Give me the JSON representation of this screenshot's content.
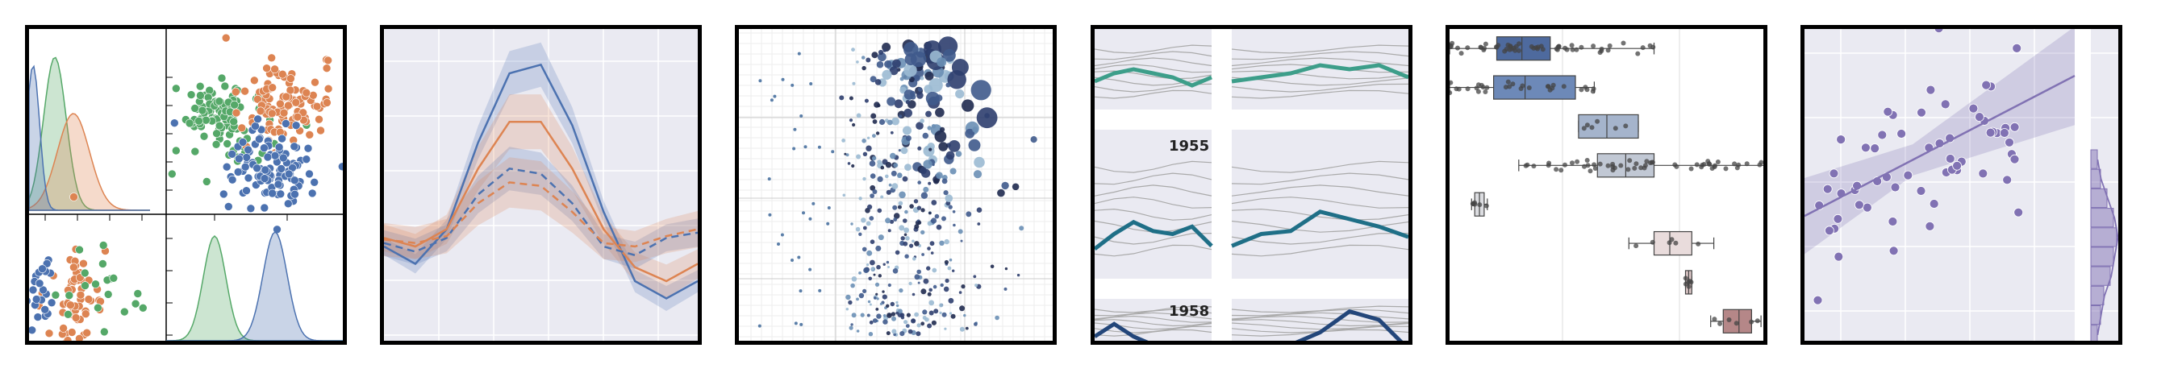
{
  "colors": {
    "blue": "#4c72b0",
    "orange": "#dd8452",
    "green": "#55a868",
    "grey_bg": "#eaeaf2",
    "teal": "#3d9e8a",
    "dark_teal": "#1f6f87",
    "navy": "#23467a",
    "purple": "#8172b3",
    "line_grey": "#aaaaaa"
  },
  "chart_data": [
    {
      "type": "scatter",
      "description_kind": "pairgrid",
      "series": [
        {
          "name": "",
          "color": "green",
          "center": [
            3.0,
            3.4
          ]
        },
        {
          "name": "",
          "color": "orange",
          "center": [
            5.9,
            3.8
          ]
        },
        {
          "name": "",
          "color": "blue",
          "center": [
            5.5,
            2.1
          ]
        }
      ]
    },
    {
      "type": "line",
      "x": [
        0,
        1,
        2,
        3,
        4,
        5,
        6,
        7,
        8,
        9,
        10
      ],
      "series": [
        {
          "name": "",
          "style": "solid",
          "color": "blue",
          "values": [
            0.0,
            -0.1,
            0.1,
            0.6,
            1.0,
            1.05,
            0.7,
            0.2,
            -0.2,
            -0.3,
            -0.2
          ]
        },
        {
          "name": "",
          "style": "solid",
          "color": "orange",
          "values": [
            0.05,
            0.0,
            0.1,
            0.45,
            0.72,
            0.72,
            0.45,
            0.1,
            -0.12,
            -0.2,
            -0.1
          ]
        },
        {
          "name": "",
          "style": "dashed",
          "color": "blue",
          "values": [
            0.02,
            -0.03,
            0.05,
            0.3,
            0.45,
            0.42,
            0.25,
            0.0,
            -0.05,
            0.05,
            0.08
          ]
        },
        {
          "name": "",
          "style": "dashed",
          "color": "orange",
          "values": [
            0.04,
            0.02,
            0.06,
            0.25,
            0.37,
            0.35,
            0.2,
            0.02,
            0.0,
            0.06,
            0.1
          ]
        }
      ]
    },
    {
      "type": "scatter",
      "description_kind": "bubble",
      "size_range": [
        2,
        18
      ]
    },
    {
      "type": "line",
      "description_kind": "small-multiples",
      "years": [
        "1955",
        "1958"
      ],
      "facet_lines": [
        {
          "values": [
            4.5,
            4.7,
            4.8,
            4.6,
            4.4,
            4.2
          ]
        },
        {
          "values": [
            4.4,
            4.6,
            4.7,
            4.5,
            4.3,
            4.1
          ]
        },
        {
          "values": [
            4.2,
            4.5,
            4.6,
            4.4,
            4.2,
            4.0
          ]
        }
      ]
    },
    {
      "type": "box",
      "boxes": [
        {
          "q1": 1.5,
          "median": 2.3,
          "q3": 3.2,
          "lo": 0.0,
          "hi": 6.5,
          "color": "#4e6a9e"
        },
        {
          "q1": 1.4,
          "median": 2.4,
          "q3": 4.0,
          "lo": 0.0,
          "hi": 4.6,
          "color": "#6d89b8"
        },
        {
          "q1": 4.1,
          "median": 5.0,
          "q3": 6.0,
          "lo": 4.1,
          "hi": 6.0,
          "color": "#a5b4cc"
        },
        {
          "q1": 4.7,
          "median": 5.6,
          "q3": 6.5,
          "lo": 2.2,
          "hi": 10.0,
          "color": "#c1c8d4"
        },
        {
          "q1": 0.8,
          "median": 0.95,
          "q3": 1.1,
          "lo": 0.7,
          "hi": 1.2,
          "color": "#dcdde1"
        },
        {
          "q1": 6.5,
          "median": 7.0,
          "q3": 7.7,
          "lo": 5.7,
          "hi": 8.4,
          "color": "#e9dcdc"
        },
        {
          "q1": 7.5,
          "median": 7.6,
          "q3": 7.7,
          "lo": 7.5,
          "hi": 7.7,
          "color": "#d9c4c4"
        },
        {
          "q1": 8.7,
          "median": 9.2,
          "q3": 9.6,
          "lo": 8.3,
          "hi": 9.9,
          "color": "#b58788"
        }
      ]
    },
    {
      "type": "scatter",
      "description_kind": "regression-with-marginal",
      "xlim": [
        0,
        10
      ],
      "ylim": [
        0,
        10
      ],
      "fit": {
        "intercept": 4.0,
        "slope": 0.45
      },
      "marginal_hist": [
        2,
        3,
        5,
        7,
        8,
        7,
        6,
        4,
        3,
        2
      ]
    }
  ]
}
